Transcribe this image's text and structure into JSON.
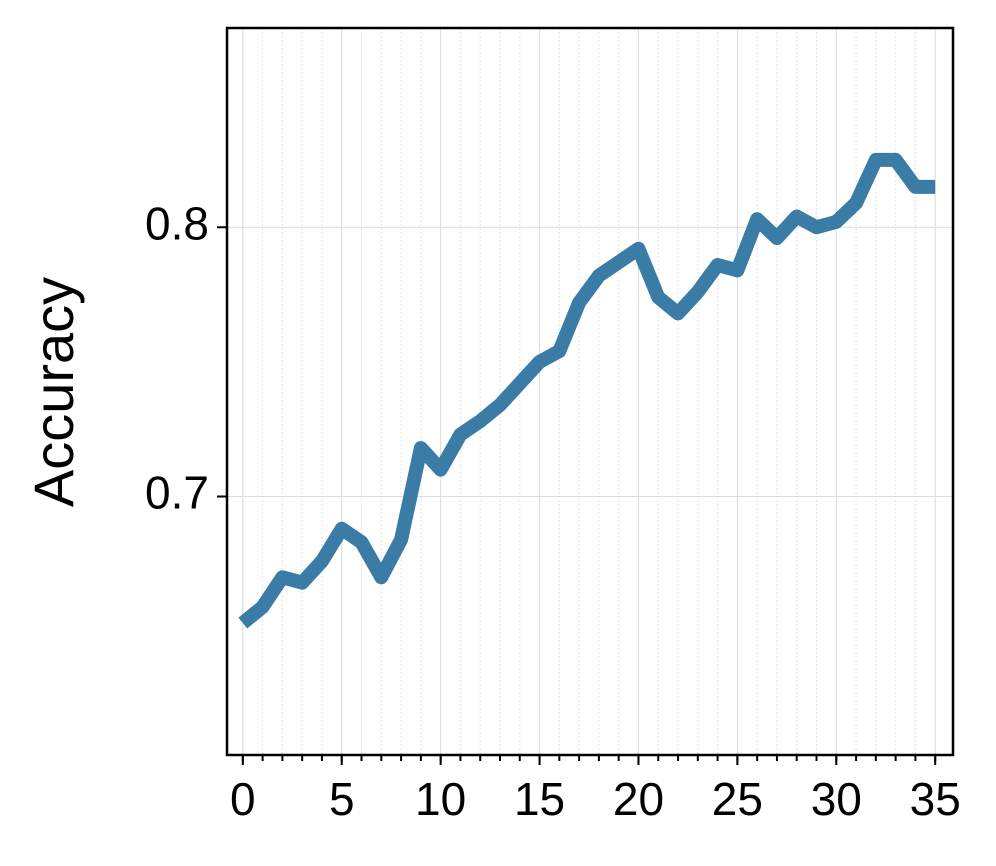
{
  "chart_data": {
    "type": "line",
    "ylabel": "Accuracy",
    "x": [
      0,
      1,
      2,
      3,
      4,
      5,
      6,
      7,
      8,
      9,
      10,
      11,
      12,
      13,
      14,
      15,
      16,
      17,
      18,
      19,
      20,
      21,
      22,
      23,
      24,
      25,
      26,
      27,
      28,
      29,
      30,
      31,
      32,
      33,
      34,
      35
    ],
    "series": [
      {
        "name": "Accuracy",
        "color": "#3a7ca5",
        "values": [
          0.653,
          0.659,
          0.67,
          0.668,
          0.676,
          0.688,
          0.683,
          0.67,
          0.684,
          0.718,
          0.71,
          0.723,
          0.728,
          0.734,
          0.742,
          0.75,
          0.754,
          0.772,
          0.782,
          0.787,
          0.792,
          0.774,
          0.768,
          0.776,
          0.786,
          0.784,
          0.803,
          0.796,
          0.804,
          0.8,
          0.802,
          0.809,
          0.825,
          0.825,
          0.815,
          0.815
        ]
      }
    ],
    "xlim": [
      -0.8,
      35.9
    ],
    "ylim": [
      0.604,
      0.874
    ],
    "xticks": [
      0,
      5,
      10,
      15,
      20,
      25,
      30,
      35
    ],
    "xminorticks": [
      0,
      1,
      2,
      3,
      4,
      5,
      6,
      7,
      8,
      9,
      10,
      11,
      12,
      13,
      14,
      15,
      16,
      17,
      18,
      19,
      20,
      21,
      22,
      23,
      24,
      25,
      26,
      27,
      28,
      29,
      30,
      31,
      32,
      33,
      34,
      35
    ],
    "yticks": [
      0.7,
      0.8
    ],
    "grid": true
  }
}
